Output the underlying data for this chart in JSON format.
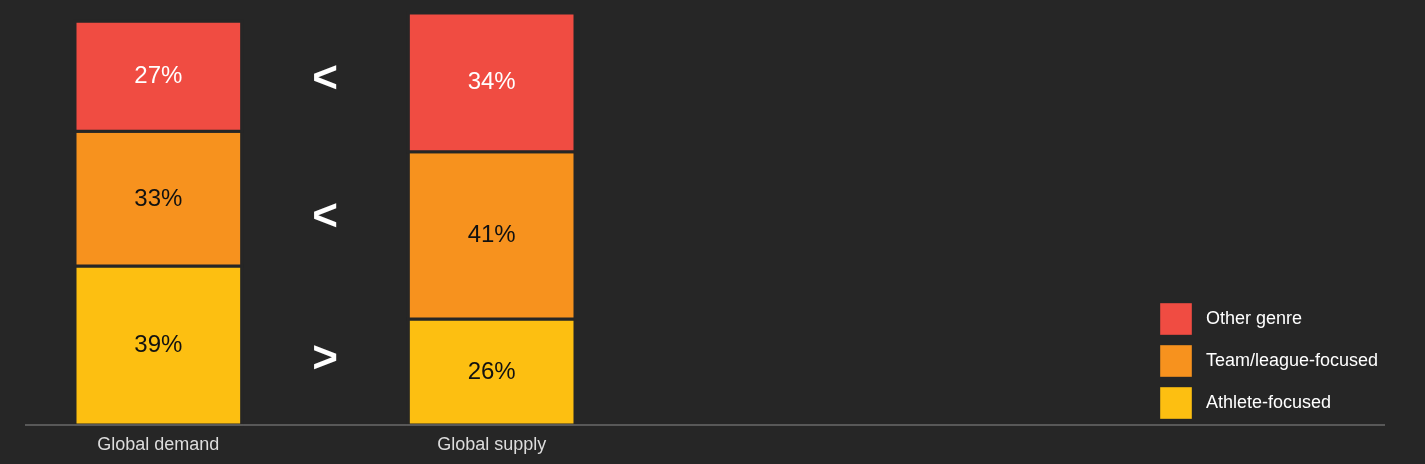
{
  "chart_data": {
    "type": "bar",
    "stacked": true,
    "categories": [
      "Global demand",
      "Global supply"
    ],
    "series": [
      {
        "name": "Athlete-focused",
        "color": "#fdbf11",
        "values": [
          39,
          26
        ],
        "value_labels": [
          "39%",
          "26%"
        ]
      },
      {
        "name": "Team/league-focused",
        "color": "#f7921e",
        "values": [
          33,
          41
        ],
        "value_labels": [
          "33%",
          "41%"
        ]
      },
      {
        "name": "Other genre",
        "color": "#f04c42",
        "values": [
          27,
          34
        ],
        "value_labels": [
          "27%",
          "34%"
        ]
      }
    ],
    "annotations": [
      "<",
      "<",
      ">"
    ],
    "legend": "bottom right"
  }
}
